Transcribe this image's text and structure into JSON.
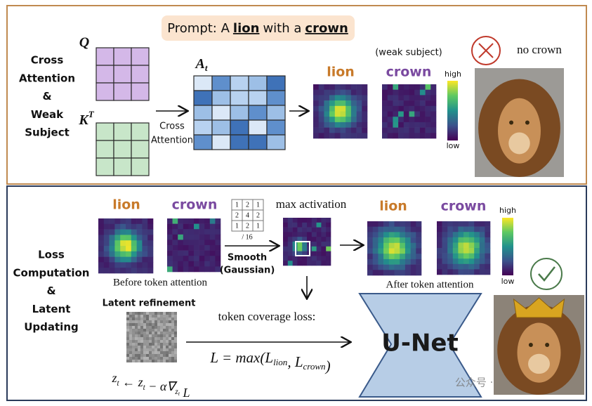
{
  "top_panel": {
    "section_label": [
      "Cross",
      "Attention",
      "&",
      "Weak",
      "Subject"
    ],
    "prompt": {
      "prefix": "Prompt:  A",
      "subject": "lion",
      "middle": "with a",
      "object": "crown"
    },
    "query_label": "Q",
    "key_label": {
      "base": "K",
      "sup": "T"
    },
    "attention_label": {
      "base": "A",
      "sub": "t"
    },
    "arrow_label": [
      "Cross",
      "Attention"
    ],
    "maps": [
      {
        "label": "lion"
      },
      {
        "label": "crown",
        "note": "(weak subject)"
      }
    ],
    "colorbar": {
      "high": "high",
      "low": "low"
    },
    "result": "no crown"
  },
  "bottom_panel": {
    "section_label": [
      "Loss",
      "Computation",
      "&",
      "Latent",
      "Updating"
    ],
    "before": {
      "maps": [
        "lion",
        "crown"
      ],
      "caption": "Before token attention"
    },
    "kernel": {
      "rows": [
        [
          1,
          2,
          1
        ],
        [
          2,
          4,
          2
        ],
        [
          1,
          2,
          1
        ]
      ],
      "divisor": "/ 16"
    },
    "smooth_label": [
      "Smooth",
      "(Gaussian)"
    ],
    "max_label": "max activation",
    "after": {
      "maps": [
        "lion",
        "crown"
      ],
      "caption": "After token attention"
    },
    "colorbar": {
      "high": "high",
      "low": "low"
    },
    "latent_label": "Latent refinement",
    "loss_label": "token coverage loss:",
    "loss_formula": [
      {
        "text": "L = max("
      },
      {
        "text": "L",
        "sub": "lion"
      },
      {
        "text": ", "
      },
      {
        "text": "L",
        "sub": "crown"
      },
      {
        "text": ")"
      }
    ],
    "update_formula": [
      {
        "text": "z",
        "sub": "t"
      },
      {
        "text": " ← "
      },
      {
        "text": "z",
        "sub": "t"
      },
      {
        "text": " − α∇",
        "sub": "z",
        "subsub": "t"
      },
      {
        "text": " L"
      }
    ],
    "unet_label": "U-Net",
    "watermark": "公众号 · 新智元"
  }
}
